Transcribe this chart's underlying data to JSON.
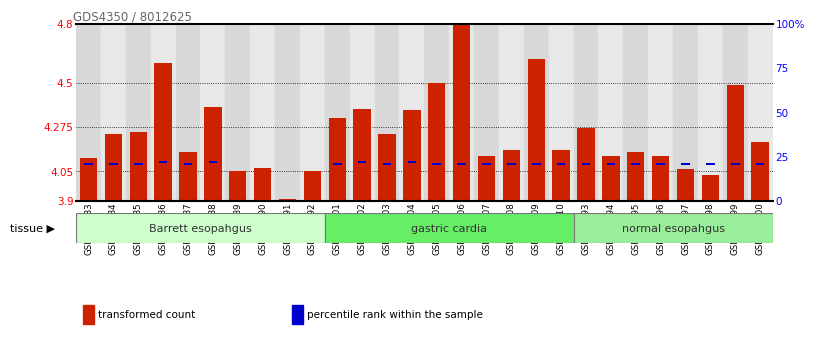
{
  "title": "GDS4350 / 8012625",
  "samples": [
    "GSM851983",
    "GSM851984",
    "GSM851985",
    "GSM851986",
    "GSM851987",
    "GSM851988",
    "GSM851989",
    "GSM851990",
    "GSM851991",
    "GSM851992",
    "GSM852001",
    "GSM852002",
    "GSM852003",
    "GSM852004",
    "GSM852005",
    "GSM852006",
    "GSM852007",
    "GSM852008",
    "GSM852009",
    "GSM852010",
    "GSM851993",
    "GSM851994",
    "GSM851995",
    "GSM851996",
    "GSM851997",
    "GSM851998",
    "GSM851999",
    "GSM852000"
  ],
  "transformed_count": [
    4.12,
    4.24,
    4.25,
    4.6,
    4.15,
    4.38,
    4.05,
    4.07,
    3.91,
    4.05,
    4.32,
    4.37,
    4.24,
    4.36,
    4.5,
    4.8,
    4.13,
    4.16,
    4.62,
    4.16,
    4.27,
    4.13,
    4.15,
    4.13,
    4.06,
    4.03,
    4.49,
    4.2
  ],
  "percentile_rank": [
    4.09,
    4.09,
    4.09,
    4.1,
    4.09,
    4.1,
    null,
    null,
    null,
    null,
    4.09,
    4.1,
    4.09,
    4.1,
    4.09,
    4.09,
    4.09,
    4.09,
    4.09,
    4.09,
    4.09,
    4.09,
    4.09,
    4.09,
    4.09,
    4.09,
    4.09,
    4.09
  ],
  "groups": [
    {
      "label": "Barrett esopahgus",
      "start": 0,
      "end": 9,
      "color": "#ccffcc"
    },
    {
      "label": "gastric cardia",
      "start": 10,
      "end": 19,
      "color": "#66ee66"
    },
    {
      "label": "normal esopahgus",
      "start": 20,
      "end": 27,
      "color": "#99ee99"
    }
  ],
  "ymin": 3.9,
  "ymax": 4.8,
  "yticks": [
    3.9,
    4.05,
    4.275,
    4.5,
    4.8
  ],
  "ytick_labels": [
    "3.9",
    "4.05",
    "4.275",
    "4.5",
    "4.8"
  ],
  "right_yticks": [
    0,
    25,
    50,
    75,
    100
  ],
  "right_ytick_labels": [
    "0",
    "25",
    "50",
    "75",
    "100%"
  ],
  "bar_color": "#cc2200",
  "marker_color": "#0000cc",
  "bar_width": 0.7,
  "tissue_label": "tissue ▶",
  "legend": [
    {
      "color": "#cc2200",
      "label": "transformed count"
    },
    {
      "color": "#0000cc",
      "label": "percentile rank within the sample"
    }
  ],
  "col_bg_even": "#d8d8d8",
  "col_bg_odd": "#e8e8e8"
}
